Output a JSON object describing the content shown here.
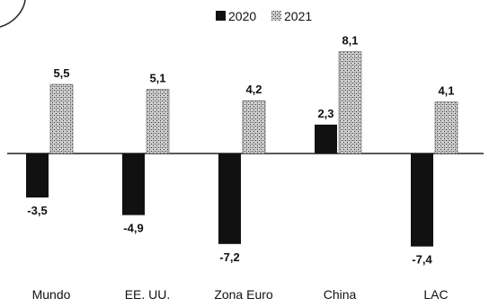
{
  "chart_data": {
    "type": "bar",
    "categories": [
      "Mundo",
      "EE. UU.",
      "Zona Euro",
      "China",
      "LAC"
    ],
    "series": [
      {
        "name": "2020",
        "values": [
          -3.5,
          -4.9,
          -7.2,
          2.3,
          -7.4
        ],
        "labels": [
          "-3,5",
          "-4,9",
          "-7,2",
          "2,3",
          "-7,4"
        ],
        "color": "#111111"
      },
      {
        "name": "2021",
        "values": [
          5.5,
          5.1,
          4.2,
          8.1,
          4.1
        ],
        "labels": [
          "5,5",
          "5,1",
          "4,2",
          "8,1",
          "4,1"
        ],
        "color": "#bfbfbf",
        "pattern": "speckled"
      }
    ],
    "title": "",
    "xlabel": "",
    "ylabel": "",
    "ylim": [
      -8.5,
      9.5
    ],
    "grid": false,
    "legend_position": "top-right"
  }
}
